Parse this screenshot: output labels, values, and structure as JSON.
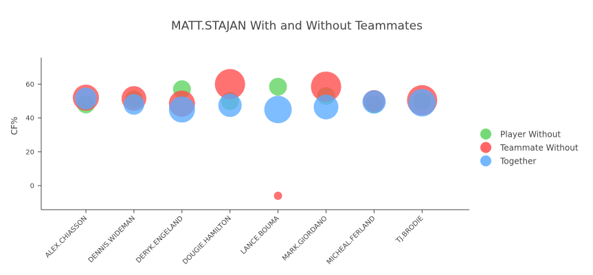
{
  "chart_data": {
    "type": "scatter",
    "title": "MATT.STAJAN With and Without Teammates",
    "xlabel": "",
    "ylabel": "CF%",
    "ylim": [
      -14,
      75
    ],
    "yticks": [
      0,
      20,
      40,
      60
    ],
    "grid": false,
    "legend_position": "right",
    "categories": [
      "ALEX.CHIASSON",
      "DENNIS.WIDEMAN",
      "DERYK.ENGELAND",
      "DOUGIE.HAMILTON",
      "LANCE.BOUMA",
      "MARK.GIORDANO",
      "MICHEAL.FERLAND",
      "TJ.BRODIE"
    ],
    "series": [
      {
        "name": "Player Without",
        "color": "#5dd35d",
        "values": [
          48,
          51,
          57,
          50,
          58.5,
          53,
          48,
          50
        ],
        "sizes": [
          13,
          13,
          13,
          13,
          13,
          13,
          13,
          13
        ]
      },
      {
        "name": "Teammate Without",
        "color": "#ff4a4a",
        "values": [
          52,
          51.5,
          48.5,
          60,
          -6,
          58.5,
          50,
          50.5
        ],
        "sizes": [
          19,
          18,
          19,
          22,
          6,
          22,
          16,
          22
        ]
      },
      {
        "name": "Together",
        "color": "#5aaaff",
        "values": [
          51.5,
          48,
          45,
          47.5,
          45,
          46.5,
          49.5,
          49
        ],
        "sizes": [
          16,
          15,
          19,
          17,
          20,
          18,
          17,
          20
        ]
      }
    ]
  }
}
